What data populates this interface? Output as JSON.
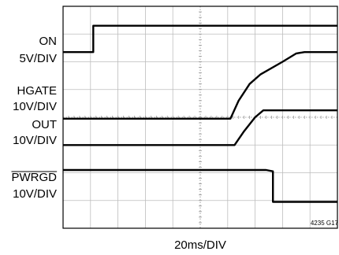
{
  "chart_data": {
    "type": "line",
    "title": "",
    "xlabel": "20ms/DIV",
    "figure_id": "4235 G17",
    "grid": true,
    "divisions": {
      "x": 10,
      "y": 8
    },
    "x_range_div": [
      0,
      10
    ],
    "y_range_div": [
      0,
      8
    ],
    "series": [
      {
        "name": "ON",
        "scale": "5V/DIV",
        "x_div": [
          0,
          1.1,
          1.1,
          10
        ],
        "y_div": [
          6.35,
          6.35,
          7.3,
          7.3
        ]
      },
      {
        "name": "HGATE",
        "scale": "10V/DIV",
        "x_div": [
          0,
          6.1,
          6.4,
          6.8,
          7.2,
          8.0,
          8.5,
          8.8,
          10
        ],
        "y_div": [
          3.95,
          3.95,
          4.6,
          5.2,
          5.55,
          6.0,
          6.3,
          6.35,
          6.35
        ]
      },
      {
        "name": "OUT",
        "scale": "10V/DIV",
        "x_div": [
          0,
          6.25,
          6.6,
          7.0,
          7.3,
          10
        ],
        "y_div": [
          3.0,
          3.0,
          3.5,
          4.0,
          4.25,
          4.25
        ]
      },
      {
        "name": "PWRGD",
        "scale": "10V/DIV",
        "x_div": [
          0,
          7.4,
          7.65,
          7.65,
          10
        ],
        "y_div": [
          2.1,
          2.1,
          2.05,
          0.95,
          0.95
        ]
      }
    ],
    "channel_labels": [
      {
        "name": "ON",
        "scale": "5V/DIV"
      },
      {
        "name": "HGATE",
        "scale": "10V/DIV"
      },
      {
        "name": "OUT",
        "scale": "10V/DIV"
      },
      {
        "name": "PWRGD",
        "scale": "10V/DIV",
        "overline": true
      }
    ]
  }
}
